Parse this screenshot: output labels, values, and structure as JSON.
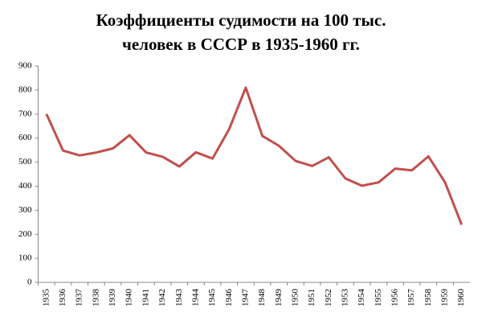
{
  "chart_data": {
    "type": "line",
    "title": [
      "Коэффициенты судимости на 100 тыс.",
      "человек в СССР в 1935-1960 гг."
    ],
    "categories": [
      "1935",
      "1936",
      "1937",
      "1938",
      "1939",
      "1940",
      "1941",
      "1942",
      "1943",
      "1944",
      "1945",
      "1946",
      "1947",
      "1948",
      "1949",
      "1950",
      "1951",
      "1952",
      "1953",
      "1954",
      "1955",
      "1956",
      "1957",
      "1958",
      "1959",
      "1960"
    ],
    "values": [
      700,
      548,
      528,
      540,
      557,
      612,
      540,
      522,
      482,
      541,
      515,
      637,
      810,
      609,
      568,
      505,
      484,
      520,
      432,
      402,
      416,
      473,
      466,
      524,
      416,
      240
    ],
    "color": "#c0504d",
    "ylim": [
      0,
      900
    ],
    "yticks": [
      0,
      100,
      200,
      300,
      400,
      500,
      600,
      700,
      800,
      900
    ]
  }
}
